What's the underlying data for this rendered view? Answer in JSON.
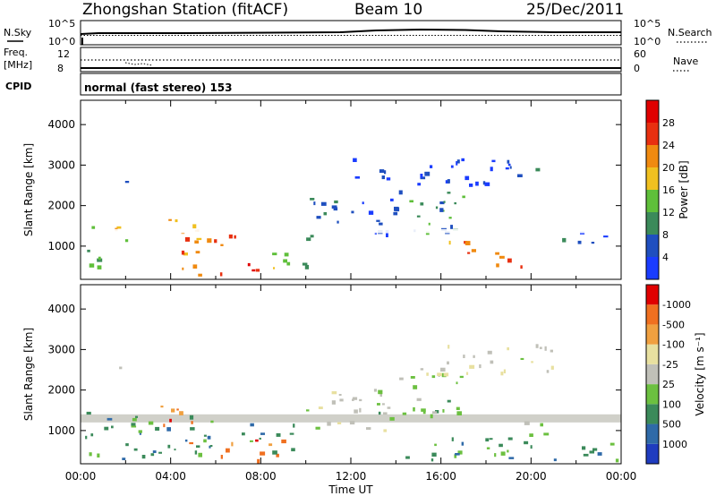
{
  "header": {
    "title": "Zhongshan Station (fitACF)",
    "beam": "Beam 10",
    "date": "25/Dec/2011"
  },
  "status_panels": {
    "nsky_label": "N.Sky",
    "nsearch_label": "N.Search",
    "nsky_ticks": [
      "10^5",
      "10^0"
    ],
    "nsearch_ticks": [
      "10^5",
      "10^0"
    ],
    "freq_label_1": "Freq.",
    "freq_label_2": "[MHz]",
    "freq_ticks": [
      "12",
      "8"
    ],
    "nave_label": "Nave",
    "nave_ticks": [
      "60",
      "0"
    ],
    "cpid_label": "CPID",
    "cpid_value": "normal (fast stereo) 153"
  },
  "chart_data": [
    {
      "type": "heatmap",
      "panel": "power",
      "ylabel": "Slant Range [km]",
      "xlabel": "",
      "yticks": [
        1000,
        2000,
        3000,
        4000
      ],
      "ylim": [
        180,
        4600
      ],
      "x_tick_labels": [
        "00:00",
        "04:00",
        "08:00",
        "12:00",
        "16:00",
        "20:00",
        "00:00"
      ],
      "colorbar": {
        "label": "Power [dB]",
        "tick_labels": [
          "4",
          "8",
          "12",
          "16",
          "20",
          "24",
          "28"
        ],
        "colors": [
          "#1a3cff",
          "#1f4fbf",
          "#3b8a5a",
          "#5fbf3a",
          "#f0c020",
          "#f08a10",
          "#e83010",
          "#e00000"
        ]
      },
      "regions": [
        {
          "t0": 0.2,
          "t1": 1.0,
          "r0": 300,
          "r1": 1600,
          "level": 2
        },
        {
          "t0": 1.0,
          "t1": 2.2,
          "r0": 1100,
          "r1": 1500,
          "level": 4
        },
        {
          "t0": 1.3,
          "t1": 2.1,
          "r0": 2400,
          "r1": 2700,
          "level": 2
        },
        {
          "t0": 3.5,
          "t1": 4.5,
          "r0": 1500,
          "r1": 1900,
          "level": 4
        },
        {
          "t0": 4.0,
          "t1": 6.0,
          "r0": 300,
          "r1": 1600,
          "level": 5
        },
        {
          "t0": 5.5,
          "t1": 7.5,
          "r0": 900,
          "r1": 1300,
          "level": 6
        },
        {
          "t0": 6.0,
          "t1": 8.0,
          "r0": 300,
          "r1": 700,
          "level": 7
        },
        {
          "t0": 8.0,
          "t1": 10.0,
          "r0": 400,
          "r1": 1000,
          "level": 3
        },
        {
          "t0": 10.0,
          "t1": 14.0,
          "r0": 1100,
          "r1": 2200,
          "level": 1
        },
        {
          "t0": 14.0,
          "t1": 17.0,
          "r0": 1300,
          "r1": 2500,
          "level": 2
        },
        {
          "t0": 16.0,
          "t1": 18.5,
          "r0": 800,
          "r1": 1200,
          "level": 5
        },
        {
          "t0": 18.0,
          "t1": 20.0,
          "r0": 400,
          "r1": 800,
          "level": 6
        },
        {
          "t0": 19.0,
          "t1": 20.5,
          "r0": 2600,
          "r1": 3000,
          "level": 2
        },
        {
          "t0": 21.0,
          "t1": 23.8,
          "r0": 1100,
          "r1": 1400,
          "level": 1
        },
        {
          "t0": 12.0,
          "t1": 19.0,
          "r0": 2500,
          "r1": 3200,
          "level": 0
        }
      ],
      "gap_range_km": [
        1320,
        1420
      ]
    },
    {
      "type": "heatmap",
      "panel": "velocity",
      "ylabel": "Slant Range [km]",
      "xlabel": "Time UT",
      "yticks": [
        1000,
        2000,
        3000,
        4000
      ],
      "ylim": [
        180,
        4600
      ],
      "x_tick_labels": [
        "00:00",
        "04:00",
        "08:00",
        "12:00",
        "16:00",
        "20:00",
        "00:00"
      ],
      "colorbar": {
        "label": "Velocity [m s⁻¹]",
        "tick_labels": [
          "1000",
          "500",
          "100",
          "25",
          "-25",
          "-100",
          "-500",
          "-1000"
        ],
        "colors": [
          "#1f3cbf",
          "#2f6aa8",
          "#3b8a5a",
          "#6cc040",
          "#c0c0b8",
          "#e8e0a0",
          "#f0a040",
          "#f07020",
          "#e00000"
        ]
      },
      "regions": [
        {
          "t0": 0.2,
          "t1": 2.5,
          "r0": 300,
          "r1": 1500,
          "level": 2
        },
        {
          "t0": 1.3,
          "t1": 2.0,
          "r0": 2400,
          "r1": 2700,
          "level": 4
        },
        {
          "t0": 3.5,
          "t1": 5.0,
          "r0": 700,
          "r1": 1700,
          "level": 7
        },
        {
          "t0": 2.5,
          "t1": 6.0,
          "r0": 300,
          "r1": 1500,
          "level": 2
        },
        {
          "t0": 6.0,
          "t1": 9.0,
          "r0": 250,
          "r1": 800,
          "level": 7
        },
        {
          "t0": 7.0,
          "t1": 9.5,
          "r0": 500,
          "r1": 1200,
          "level": 2
        },
        {
          "t0": 10.0,
          "t1": 14.0,
          "r0": 1000,
          "r1": 2000,
          "level": 4
        },
        {
          "t0": 13.0,
          "t1": 17.0,
          "r0": 1400,
          "r1": 2400,
          "level": 3
        },
        {
          "t0": 15.0,
          "t1": 21.0,
          "r0": 2400,
          "r1": 3200,
          "level": 4
        },
        {
          "t0": 14.0,
          "t1": 20.0,
          "r0": 300,
          "r1": 900,
          "level": 2
        },
        {
          "t0": 19.0,
          "t1": 21.0,
          "r0": 900,
          "r1": 1300,
          "level": 3
        },
        {
          "t0": 21.0,
          "t1": 23.8,
          "r0": 300,
          "r1": 800,
          "level": 2
        }
      ],
      "gray_band_km": [
        1200,
        1400
      ]
    }
  ]
}
